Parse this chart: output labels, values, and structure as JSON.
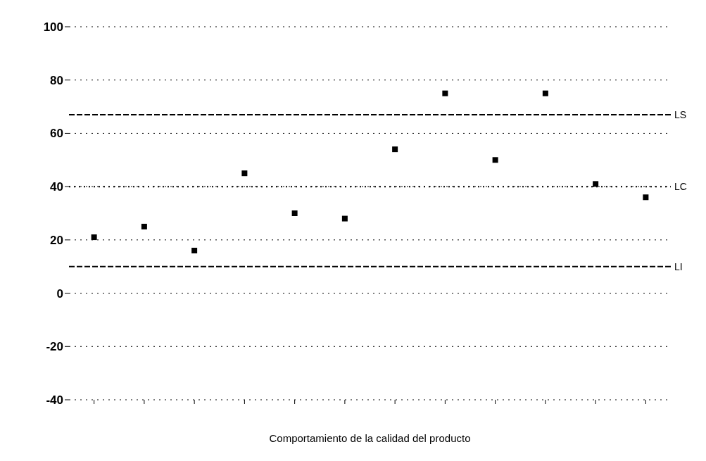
{
  "chart_data": {
    "type": "scatter",
    "xlabel": "Comportamiento de la calidad del producto",
    "categories": [
      null,
      null,
      null,
      null,
      null,
      null,
      null,
      null,
      null,
      null,
      null,
      null
    ],
    "values": [
      21,
      25,
      16,
      45,
      30,
      28,
      54,
      75,
      50,
      75,
      41,
      36
    ],
    "color": "#000000",
    "ylim": [
      -40,
      100
    ],
    "yticks": [
      -40,
      -20,
      0,
      20,
      40,
      60,
      80,
      100
    ],
    "ref_lines": [
      {
        "axis": "y",
        "value": 67,
        "label": "LS",
        "color": "#000000",
        "line_style": "dashed"
      },
      {
        "axis": "y",
        "value": 40,
        "label": "LC",
        "color": "#000000",
        "line_style": "dotted"
      },
      {
        "axis": "y",
        "value": 10,
        "label": "LI",
        "color": "#000000",
        "line_style": "dashed"
      }
    ],
    "grid": "y",
    "marker": "square",
    "tick_labels": "y"
  }
}
